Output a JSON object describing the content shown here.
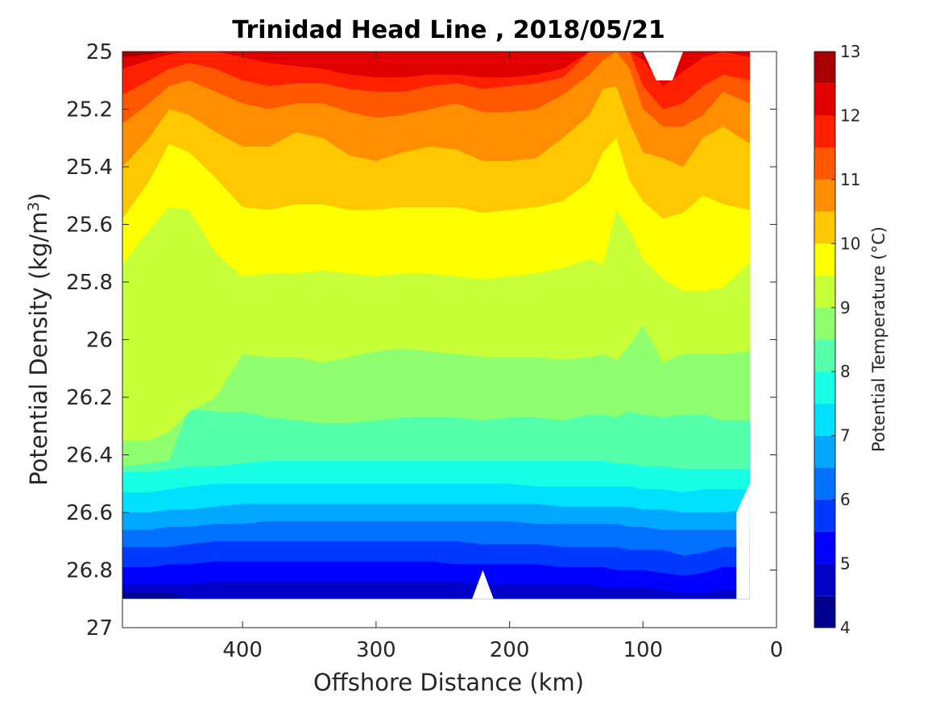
{
  "chart_data": {
    "type": "heatmap",
    "subtype": "filled-contour",
    "title": "Trinidad Head Line , 2018/05/21",
    "xlabel": "Offshore Distance (km)",
    "ylabel_prefix": "Potential Density (kg/m",
    "ylabel_sup": "3",
    "ylabel_suffix": ")",
    "xlim": [
      490,
      0
    ],
    "ylim": [
      25,
      27
    ],
    "y_reversed": true,
    "x_reversed": true,
    "grid": false,
    "xticks": [
      400,
      300,
      200,
      100,
      0
    ],
    "xtick_labels": [
      "400",
      "300",
      "200",
      "100",
      "0"
    ],
    "yticks": [
      25,
      25.2,
      25.4,
      25.6,
      25.8,
      26,
      26.2,
      26.4,
      26.6,
      26.8,
      27
    ],
    "ytick_labels": [
      "25",
      "25.2",
      "25.4",
      "25.6",
      "25.8",
      "26",
      "26.2",
      "26.4",
      "26.6",
      "26.8",
      "27"
    ],
    "data_extent_x": [
      490,
      20
    ],
    "data_bottom_density": 26.9,
    "colormap": "jet",
    "levels": [
      4,
      4.5,
      5,
      5.5,
      6,
      6.5,
      7,
      7.5,
      8,
      8.5,
      9,
      9.5,
      10,
      10.5,
      11,
      11.5,
      12,
      12.5,
      13
    ],
    "band_colors": [
      "#00008f",
      "#0000c7",
      "#0000ff",
      "#0038ff",
      "#0070ff",
      "#00a8ff",
      "#00e0ff",
      "#19ffe6",
      "#55ffaa",
      "#8fff70",
      "#c7ff38",
      "#ffff00",
      "#ffc800",
      "#ff8f00",
      "#ff5800",
      "#ff2000",
      "#e00000",
      "#a80000"
    ],
    "isopycnal_x": [
      490,
      470,
      455,
      440,
      420,
      400,
      380,
      360,
      340,
      320,
      300,
      280,
      260,
      240,
      220,
      200,
      180,
      160,
      140,
      130,
      120,
      110,
      100,
      85,
      70,
      55,
      40,
      20
    ],
    "isotherms": [
      {
        "level": 12.5,
        "y": [
          25.02,
          25.01,
          25.0,
          25.0,
          25.0,
          25.0,
          25.0,
          25.0,
          25.0,
          25.0,
          25.0,
          25.0,
          25.0,
          25.0,
          25.0,
          25.0,
          25.0,
          25.0,
          25.0,
          25.0,
          25.0,
          25.0,
          25.0,
          25.0,
          25.0,
          25.0,
          25.0,
          25.0
        ]
      },
      {
        "level": 12,
        "y": [
          25.06,
          25.03,
          25.01,
          25.0,
          25.0,
          25.02,
          25.04,
          25.05,
          25.06,
          25.08,
          25.09,
          25.09,
          25.08,
          25.08,
          25.09,
          25.09,
          25.08,
          25.06,
          25.0,
          25.0,
          25.0,
          25.0,
          25.03,
          25.12,
          25.07,
          25.02,
          25.0,
          25.02
        ]
      },
      {
        "level": 11.5,
        "y": [
          25.15,
          25.1,
          25.06,
          25.04,
          25.06,
          25.1,
          25.12,
          25.11,
          25.11,
          25.13,
          25.14,
          25.14,
          25.12,
          25.11,
          25.13,
          25.12,
          25.11,
          25.09,
          25.0,
          25.0,
          25.0,
          25.0,
          25.12,
          25.2,
          25.18,
          25.12,
          25.08,
          25.1
        ]
      },
      {
        "level": 11,
        "y": [
          25.25,
          25.18,
          25.12,
          25.1,
          25.14,
          25.18,
          25.2,
          25.18,
          25.18,
          25.21,
          25.23,
          25.22,
          25.2,
          25.18,
          25.21,
          25.21,
          25.2,
          25.15,
          25.08,
          25.03,
          25.0,
          25.06,
          25.2,
          25.26,
          25.26,
          25.22,
          25.14,
          25.18
        ]
      },
      {
        "level": 10.5,
        "y": [
          25.4,
          25.3,
          25.2,
          25.22,
          25.28,
          25.33,
          25.33,
          25.28,
          25.3,
          25.36,
          25.38,
          25.35,
          25.33,
          25.34,
          25.38,
          25.38,
          25.37,
          25.3,
          25.22,
          25.13,
          25.12,
          25.25,
          25.35,
          25.37,
          25.4,
          25.3,
          25.26,
          25.32
        ]
      },
      {
        "level": 10,
        "y": [
          25.58,
          25.45,
          25.32,
          25.35,
          25.44,
          25.54,
          25.55,
          25.53,
          25.53,
          25.55,
          25.55,
          25.54,
          25.54,
          25.54,
          25.56,
          25.55,
          25.54,
          25.52,
          25.45,
          25.35,
          25.3,
          25.45,
          25.52,
          25.58,
          25.56,
          25.5,
          25.53,
          25.55
        ]
      },
      {
        "level": 9.5,
        "y": [
          25.74,
          25.62,
          25.54,
          25.55,
          25.7,
          25.78,
          25.77,
          25.77,
          25.76,
          25.77,
          25.78,
          25.77,
          25.77,
          25.78,
          25.79,
          25.78,
          25.77,
          25.75,
          25.72,
          25.74,
          25.55,
          25.62,
          25.72,
          25.79,
          25.83,
          25.83,
          25.82,
          25.73
        ]
      },
      {
        "level": 9,
        "y": [
          26.35,
          26.35,
          26.32,
          26.25,
          26.2,
          26.05,
          26.06,
          26.06,
          26.08,
          26.06,
          26.04,
          26.03,
          26.04,
          26.05,
          26.06,
          26.06,
          26.06,
          26.07,
          26.06,
          26.05,
          26.07,
          26.02,
          25.95,
          26.08,
          26.05,
          26.05,
          26.05,
          26.04
        ]
      },
      {
        "level": 8.5,
        "y": [
          26.44,
          26.43,
          26.42,
          26.24,
          26.25,
          26.25,
          26.27,
          26.28,
          26.29,
          26.29,
          26.28,
          26.27,
          26.27,
          26.27,
          26.28,
          26.27,
          26.27,
          26.28,
          26.26,
          26.26,
          26.27,
          26.25,
          26.26,
          26.27,
          26.26,
          26.26,
          26.28,
          26.28
        ]
      },
      {
        "level": 8,
        "y": [
          26.46,
          26.46,
          26.45,
          26.44,
          26.44,
          26.43,
          26.42,
          26.42,
          26.42,
          26.42,
          26.42,
          26.42,
          26.42,
          26.42,
          26.42,
          26.42,
          26.42,
          26.42,
          26.42,
          26.42,
          26.43,
          26.43,
          26.44,
          26.44,
          26.45,
          26.45,
          26.45,
          26.45
        ]
      },
      {
        "level": 7.5,
        "y": [
          26.53,
          26.53,
          26.52,
          26.51,
          26.5,
          26.5,
          26.5,
          26.5,
          26.5,
          26.5,
          26.5,
          26.5,
          26.5,
          26.5,
          26.5,
          26.5,
          26.51,
          26.51,
          26.51,
          26.51,
          26.51,
          26.51,
          26.52,
          26.52,
          26.53,
          26.52,
          26.52,
          26.52
        ]
      },
      {
        "level": 7,
        "y": [
          26.6,
          26.6,
          26.59,
          26.59,
          26.58,
          26.57,
          26.57,
          26.57,
          26.57,
          26.57,
          26.57,
          26.57,
          26.57,
          26.57,
          26.57,
          26.57,
          26.57,
          26.58,
          26.58,
          26.58,
          26.58,
          26.58,
          26.59,
          26.59,
          26.6,
          26.6,
          26.6,
          26.59
        ]
      },
      {
        "level": 6.5,
        "y": [
          26.66,
          26.66,
          26.65,
          26.65,
          26.64,
          26.64,
          26.63,
          26.63,
          26.63,
          26.63,
          26.63,
          26.63,
          26.63,
          26.63,
          26.63,
          26.63,
          26.64,
          26.64,
          26.64,
          26.64,
          26.64,
          26.65,
          26.65,
          26.66,
          26.66,
          26.66,
          26.66,
          26.66
        ]
      },
      {
        "level": 6,
        "y": [
          26.72,
          26.72,
          26.72,
          26.71,
          26.7,
          26.7,
          26.7,
          26.7,
          26.7,
          26.7,
          26.7,
          26.7,
          26.7,
          26.7,
          26.71,
          26.71,
          26.71,
          26.72,
          26.72,
          26.72,
          26.72,
          26.73,
          26.73,
          26.73,
          26.75,
          26.74,
          26.72,
          26.72
        ]
      },
      {
        "level": 5.5,
        "y": [
          26.79,
          26.79,
          26.78,
          26.78,
          26.77,
          26.77,
          26.77,
          26.77,
          26.77,
          26.77,
          26.77,
          26.77,
          26.77,
          26.78,
          26.78,
          26.78,
          26.78,
          26.79,
          26.79,
          26.79,
          26.8,
          26.8,
          26.8,
          26.81,
          26.82,
          26.81,
          26.79,
          26.79
        ]
      },
      {
        "level": 5,
        "y": [
          26.85,
          26.85,
          26.85,
          26.85,
          26.84,
          26.84,
          26.84,
          26.84,
          26.84,
          26.84,
          26.84,
          26.84,
          26.84,
          26.84,
          26.85,
          26.85,
          26.85,
          26.85,
          26.85,
          26.86,
          26.86,
          26.86,
          26.86,
          26.87,
          26.88,
          26.88,
          26.87,
          26.87
        ]
      },
      {
        "level": 4.5,
        "y": [
          26.88,
          26.88,
          26.88,
          26.9,
          26.9,
          26.9,
          26.9,
          26.9,
          26.9,
          26.9,
          26.9,
          26.9,
          26.9,
          26.9,
          26.9,
          26.9,
          26.9,
          26.9,
          26.9,
          26.9,
          26.9,
          26.9,
          26.9,
          26.9,
          26.9,
          26.9,
          26.9,
          26.9
        ]
      }
    ],
    "no_data_regions": [
      {
        "points": [
          [
            100,
            25.0
          ],
          [
            70,
            25.0
          ],
          [
            78,
            25.1
          ],
          [
            90,
            25.1
          ]
        ]
      },
      {
        "points": [
          [
            228,
            26.9
          ],
          [
            220,
            26.8
          ],
          [
            212,
            26.9
          ]
        ]
      },
      {
        "points": [
          [
            30,
            26.9
          ],
          [
            30,
            26.6
          ],
          [
            20,
            26.5
          ],
          [
            20,
            26.9
          ]
        ]
      }
    ],
    "colorbar": {
      "label": "Potential Temperature (°C)",
      "min": 4,
      "max": 13,
      "tick_values": [
        13,
        12,
        11,
        10,
        9,
        8,
        7,
        6,
        5,
        4
      ],
      "tick_labels": [
        "13",
        "12",
        "11",
        "10",
        "9",
        "8",
        "7",
        "6",
        "5",
        "4"
      ]
    }
  }
}
